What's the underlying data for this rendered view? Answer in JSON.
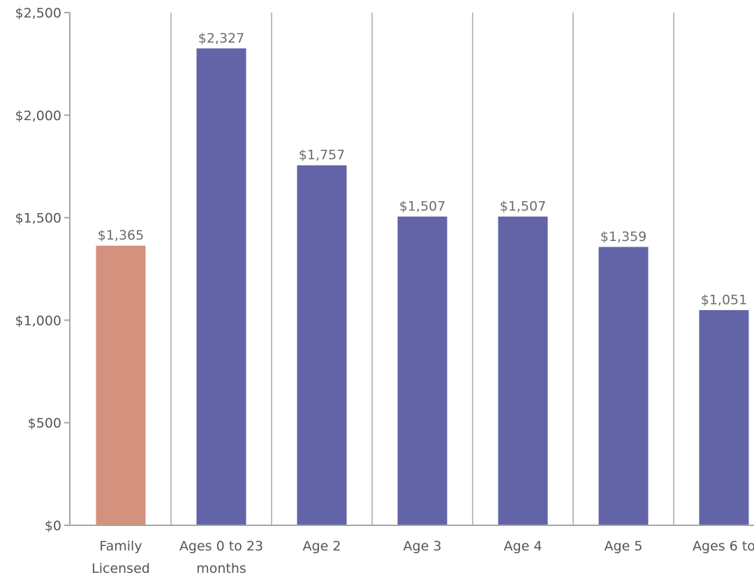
{
  "chart_data": {
    "type": "bar",
    "categories": [
      [
        "Family",
        "Licensed"
      ],
      [
        "Ages 0 to 23",
        "months"
      ],
      [
        "Age 2"
      ],
      [
        "Age 3"
      ],
      [
        "Age 4"
      ],
      [
        "Age 5"
      ],
      [
        "Ages 6 to"
      ]
    ],
    "values": [
      1365,
      2327,
      1757,
      1507,
      1507,
      1359,
      1051
    ],
    "data_labels": [
      "$1,365",
      "$2,327",
      "$1,757",
      "$1,507",
      "$1,507",
      "$1,359",
      "$1,051"
    ],
    "bar_colors": [
      "#d4917e",
      "#6264a7",
      "#6264a7",
      "#6264a7",
      "#6264a7",
      "#6264a7",
      "#6264a7"
    ],
    "yticks": [
      0,
      500,
      1000,
      1500,
      2000,
      2500
    ],
    "ytick_labels": [
      "$0",
      "$500",
      "$1,000",
      "$1,500",
      "$2,000",
      "$2,500"
    ],
    "ylim": [
      0,
      2500
    ],
    "title": "",
    "xlabel": "",
    "ylabel": "",
    "grid": "vertical separators between categories",
    "legend": "none"
  }
}
